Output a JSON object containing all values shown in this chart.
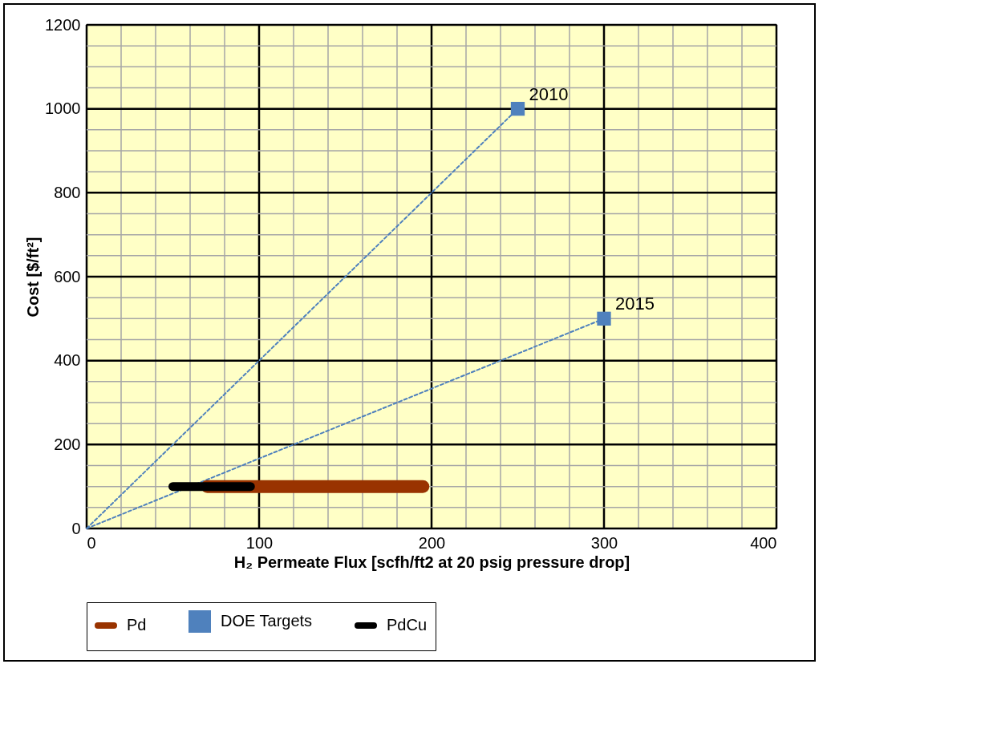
{
  "chart_data": {
    "type": "line",
    "xlabel": "H₂ Permeate Flux [scfh/ft2 at 20 psig pressure drop]",
    "ylabel": "Cost [$/ft²]",
    "xlim": [
      0,
      400
    ],
    "ylim": [
      0,
      1200
    ],
    "xticks": [
      0,
      {
        "value": 20,
        "label": null
      },
      {
        "value": 40,
        "label": null
      },
      {
        "value": 60,
        "label": null
      },
      {
        "value": 80,
        "label": null
      },
      100,
      {
        "value": 120,
        "label": null
      },
      {
        "value": 140,
        "label": null
      },
      {
        "value": 160,
        "label": null
      },
      {
        "value": 180,
        "label": null
      },
      200,
      {
        "value": 220,
        "label": null
      },
      {
        "value": 240,
        "label": null
      },
      {
        "value": 260,
        "label": null
      },
      {
        "value": 280,
        "label": null
      },
      300,
      {
        "value": 320,
        "label": null
      },
      {
        "value": 340,
        "label": null
      },
      {
        "value": 360,
        "label": null
      },
      {
        "value": 380,
        "label": null
      },
      400
    ],
    "yticks": [
      0,
      {
        "value": 50,
        "label": null
      },
      {
        "value": 100,
        "label": null
      },
      {
        "value": 150,
        "label": null
      },
      200,
      {
        "value": 250,
        "label": null
      },
      {
        "value": 300,
        "label": null
      },
      {
        "value": 350,
        "label": null
      },
      400,
      {
        "value": 450,
        "label": null
      },
      {
        "value": 500,
        "label": null
      },
      {
        "value": 550,
        "label": null
      },
      600,
      {
        "value": 650,
        "label": null
      },
      {
        "value": 700,
        "label": null
      },
      {
        "value": 750,
        "label": null
      },
      800,
      {
        "value": 850,
        "label": null
      },
      {
        "value": 900,
        "label": null
      },
      {
        "value": 950,
        "label": null
      },
      1000,
      {
        "value": 1050,
        "label": null
      },
      {
        "value": 1100,
        "label": null
      },
      {
        "value": 1150,
        "label": null
      },
      1200
    ],
    "grid": true,
    "legend": "bottom",
    "marker": "none",
    "series": [
      {
        "color": "#4f81bd",
        "line_style": "dashed",
        "x": [
          0,
          250
        ],
        "values": [
          0,
          1000
        ]
      },
      {
        "color": "#4f81bd",
        "line_style": "dashed",
        "x": [
          0,
          300
        ],
        "values": [
          0,
          500
        ]
      },
      {
        "name": "Pd",
        "color": "#993300",
        "line_style": "solid",
        "x": [
          70,
          195
        ],
        "values": [
          100,
          100
        ]
      },
      {
        "name": "DOE Targets",
        "type": "scatter",
        "marker": "square",
        "color": "#4f81bd",
        "x": [
          250,
          300
        ],
        "values": [
          1000,
          500
        ]
      },
      {
        "name": "PdCu",
        "color": "#000000",
        "line_style": "solid",
        "x": [
          50,
          95
        ],
        "values": [
          100,
          100
        ]
      }
    ],
    "annotations": [
      {
        "text": "2010",
        "x": 250,
        "y": 1000
      },
      {
        "text": "2015",
        "x": 300,
        "y": 500
      }
    ]
  }
}
